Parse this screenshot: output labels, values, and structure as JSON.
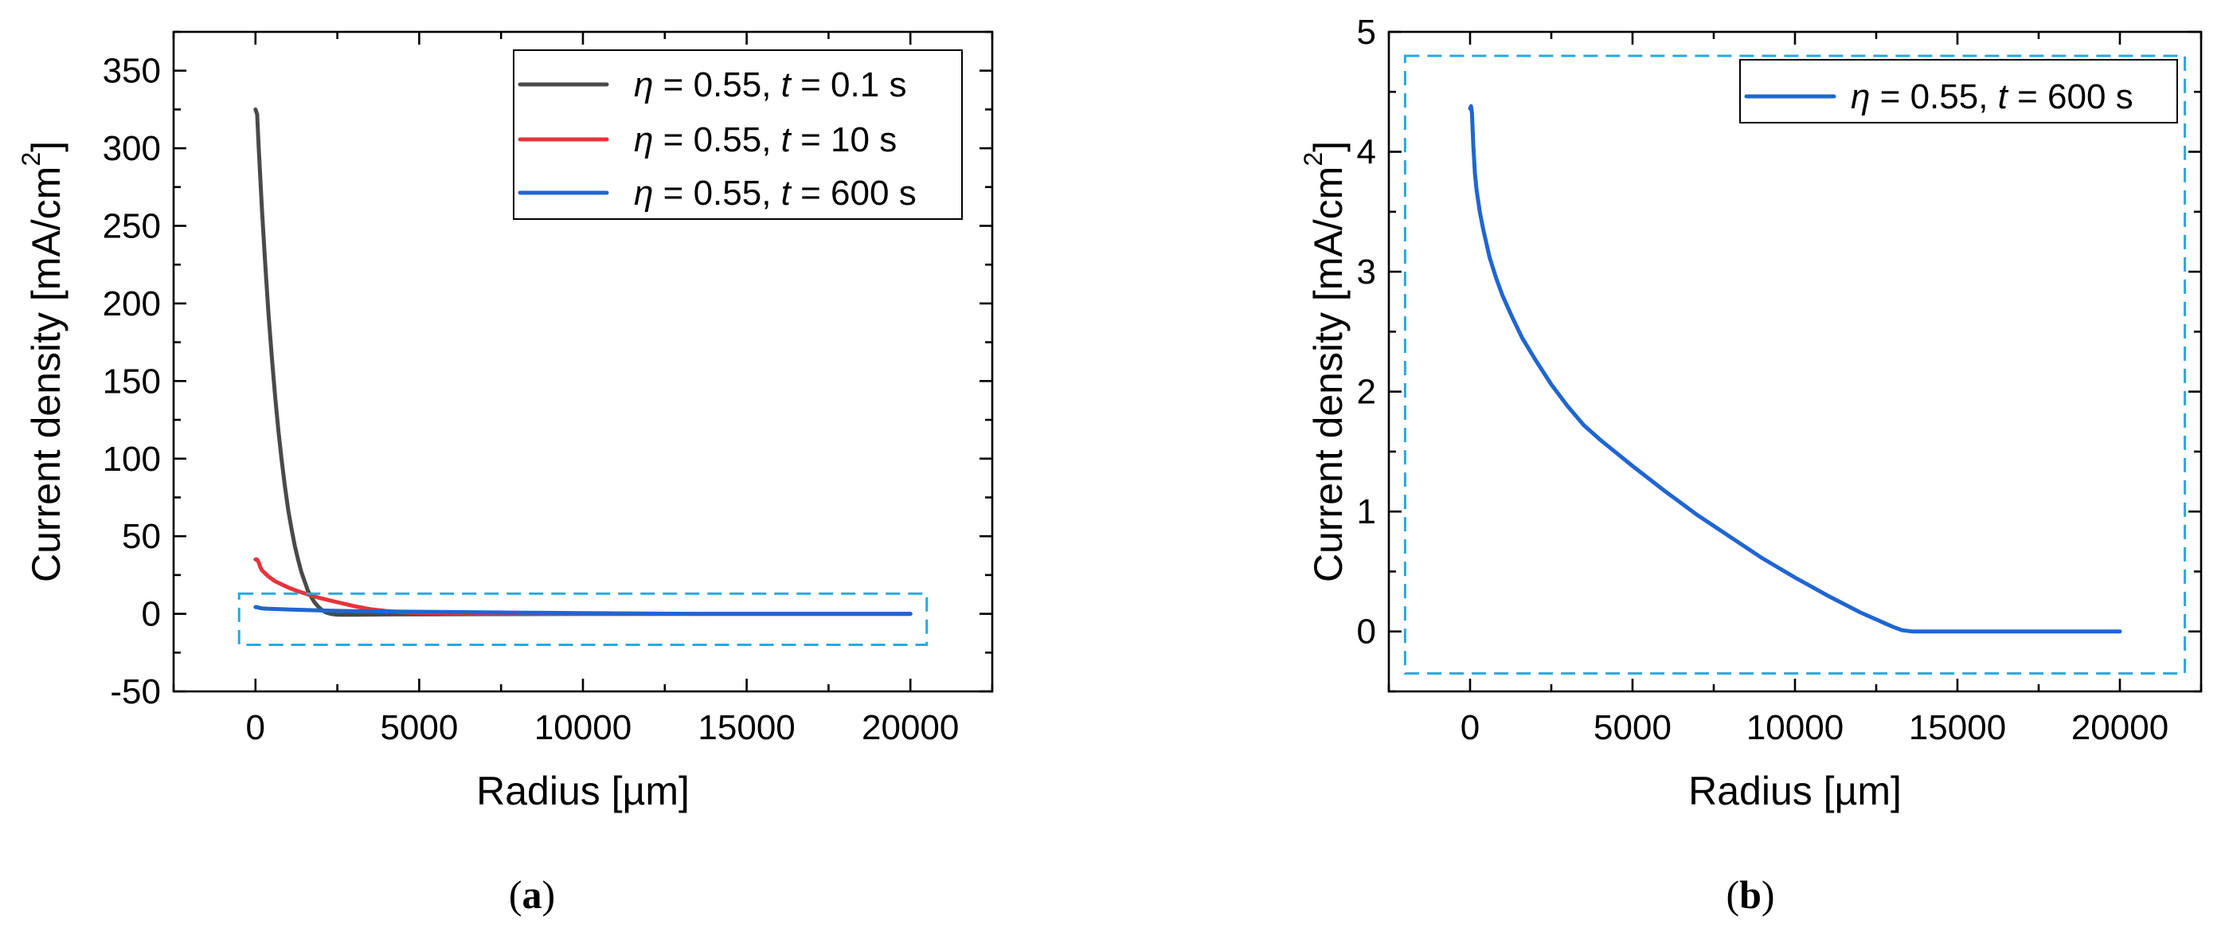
{
  "chart_data": [
    {
      "type": "line",
      "caption": "(a)",
      "xlabel": "Radius [µm]",
      "ylabel_main": "Current density [mA/cm",
      "ylabel_sup": "2",
      "ylabel_end": "]",
      "xlim": [
        -2500,
        22500
      ],
      "ylim": [
        -50,
        375
      ],
      "xticks": [
        0,
        5000,
        10000,
        15000,
        20000
      ],
      "xtick_labels": [
        "0",
        "5000",
        "10000",
        "15000",
        "20000"
      ],
      "yticks": [
        -50,
        0,
        50,
        100,
        150,
        200,
        250,
        300,
        350
      ],
      "ytick_labels": [
        "-50",
        "0",
        "50",
        "100",
        "150",
        "200",
        "250",
        "300",
        "350"
      ],
      "legend": {
        "placement": "top-right"
      },
      "zoom_region": {
        "x": [
          -500,
          20500
        ],
        "y": [
          -20,
          13
        ]
      },
      "series": [
        {
          "eta": "η",
          "label": " = 0.55, ",
          "t": "t",
          "time": " = 0.1 s",
          "color": "#4a4a4a",
          "x": [
            0,
            50,
            100,
            200,
            300,
            400,
            500,
            600,
            700,
            800,
            900,
            1000,
            1100,
            1200,
            1300,
            1400,
            1500,
            1600,
            1700,
            1800,
            1900,
            2000,
            2100,
            2200,
            2300,
            2400,
            2500,
            2700,
            3000,
            4000,
            5000,
            7000,
            10000,
            15000,
            20000
          ],
          "y": [
            325,
            322,
            300,
            260,
            225,
            193,
            165,
            140,
            118,
            99,
            82,
            67,
            55,
            44,
            35,
            27,
            21,
            15,
            11,
            7.5,
            5,
            3,
            1.5,
            0.5,
            0,
            -0.3,
            -0.5,
            -0.6,
            -0.6,
            -0.4,
            -0.3,
            -0.2,
            -0.1,
            0,
            0
          ]
        },
        {
          "eta": "η",
          "label": " = 0.55, ",
          "t": "t",
          "time": " = 10 s",
          "color": "#e8333b",
          "x": [
            0,
            50,
            100,
            150,
            200,
            300,
            400,
            600,
            800,
            1000,
            1300,
            1600,
            2000,
            2500,
            3000,
            3500,
            4000,
            4500,
            5000,
            6000,
            8000,
            10000,
            15000,
            20000
          ],
          "y": [
            35,
            35,
            33,
            30,
            28,
            26,
            24,
            21,
            19,
            17,
            14.5,
            12.5,
            10,
            7.5,
            5,
            3,
            1.8,
            1,
            0.6,
            0.3,
            0.1,
            0,
            0,
            0
          ]
        },
        {
          "eta": "η",
          "label": " = 0.55, ",
          "t": "t",
          "time": " = 600 s",
          "color": "#1f66d1",
          "x": [
            0,
            50,
            100,
            200,
            400,
            600,
            1000,
            1500,
            2000,
            3000,
            3500,
            4000,
            5000,
            6000,
            7000,
            8000,
            9000,
            10000,
            11000,
            12000,
            13000,
            13500,
            14000,
            15000,
            16000,
            17000,
            18000,
            19000,
            20000
          ],
          "y": [
            4.36,
            4.3,
            3.9,
            3.55,
            3.3,
            3.1,
            2.8,
            2.45,
            2.15,
            1.72,
            1.62,
            1.52,
            1.32,
            1.12,
            0.93,
            0.76,
            0.6,
            0.44,
            0.3,
            0.16,
            0.03,
            0,
            0,
            0,
            0,
            0,
            0,
            0,
            0
          ]
        }
      ]
    },
    {
      "type": "line",
      "caption": "(b)",
      "xlabel": "Radius [µm]",
      "ylabel_main": "Current density [mA/cm",
      "ylabel_sup": "2",
      "ylabel_end": "]",
      "xlim": [
        -2500,
        22500
      ],
      "ylim": [
        -0.5,
        5
      ],
      "xticks": [
        0,
        5000,
        10000,
        15000,
        20000
      ],
      "xtick_labels": [
        "0",
        "5000",
        "10000",
        "15000",
        "20000"
      ],
      "yticks": [
        0,
        1,
        2,
        3,
        4,
        5
      ],
      "ytick_labels": [
        "0",
        "1",
        "2",
        "3",
        "4",
        "5"
      ],
      "legend": {
        "placement": "top-right"
      },
      "zoom_region": {
        "x": [
          -2000,
          22000
        ],
        "y": [
          -0.35,
          4.8
        ]
      },
      "series": [
        {
          "eta": "η",
          "label": " = 0.55, ",
          "t": "t",
          "time": " = 600 s",
          "color": "#1f66d1",
          "x": [
            0,
            30,
            60,
            100,
            150,
            200,
            300,
            400,
            600,
            800,
            1000,
            1300,
            1600,
            2000,
            2500,
            3000,
            3500,
            4000,
            5000,
            6000,
            7000,
            8000,
            9000,
            10000,
            11000,
            12000,
            13000,
            13300,
            13600,
            14000,
            15000,
            16000,
            17000,
            18000,
            19000,
            20000
          ],
          "y": [
            4.36,
            4.38,
            4.32,
            4.05,
            3.82,
            3.68,
            3.5,
            3.36,
            3.12,
            2.95,
            2.8,
            2.62,
            2.45,
            2.27,
            2.06,
            1.88,
            1.72,
            1.6,
            1.38,
            1.17,
            0.97,
            0.79,
            0.61,
            0.45,
            0.3,
            0.16,
            0.04,
            0.01,
            0,
            0,
            0,
            0,
            0,
            0,
            0,
            0
          ]
        }
      ]
    }
  ]
}
